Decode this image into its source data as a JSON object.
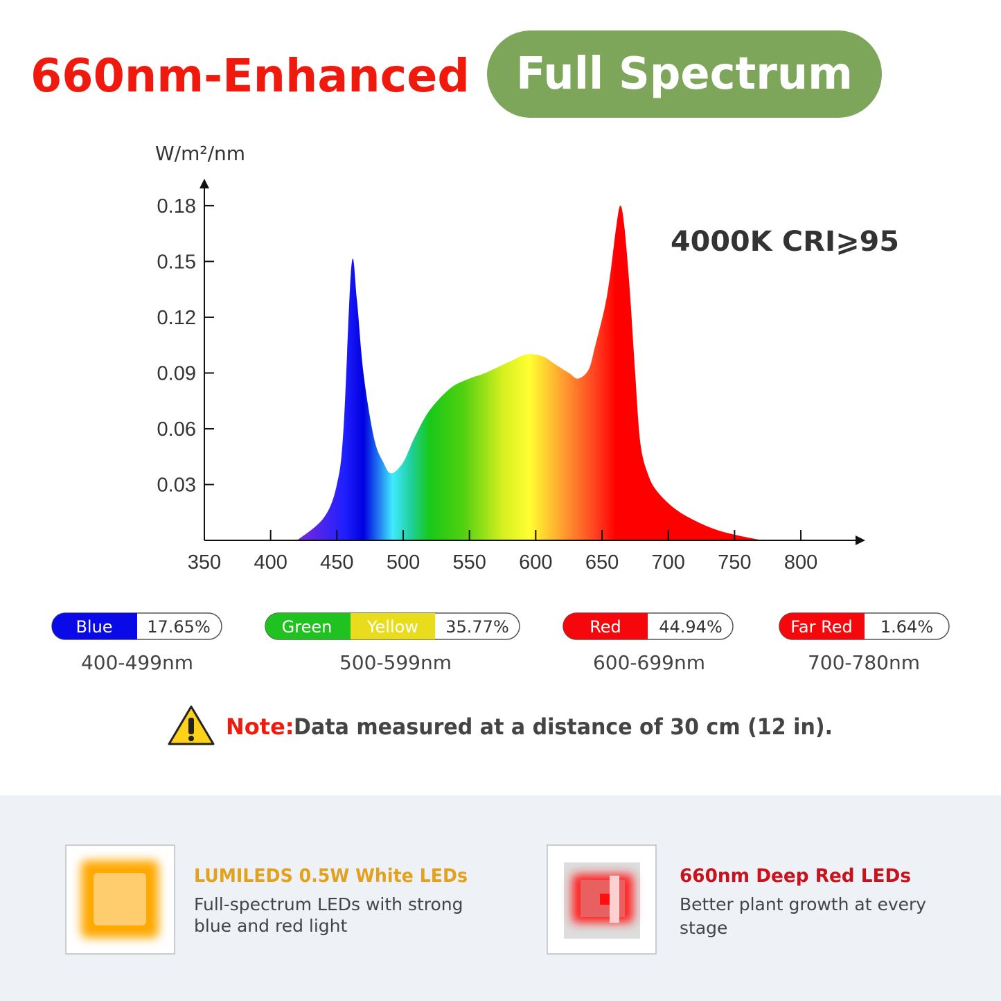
{
  "header": {
    "title": "660nm-Enhanced",
    "badge": "Full Spectrum"
  },
  "chart_data": {
    "type": "area",
    "y_label": "W/m²/nm",
    "annotation": "4000K CRI⩾95",
    "x": [
      420,
      440,
      450,
      455,
      461,
      465,
      470,
      478,
      485,
      491,
      500,
      509,
      520,
      536,
      550,
      562,
      580,
      593,
      605,
      614,
      625,
      632,
      640,
      645,
      652,
      656,
      661,
      664,
      667,
      671,
      675,
      679,
      685,
      692,
      705,
      719,
      735,
      750,
      771
    ],
    "y": [
      0,
      0.012,
      0.03,
      0.06,
      0.148,
      0.13,
      0.09,
      0.055,
      0.042,
      0.036,
      0.042,
      0.056,
      0.07,
      0.082,
      0.087,
      0.09,
      0.096,
      0.1,
      0.099,
      0.095,
      0.09,
      0.087,
      0.092,
      0.105,
      0.125,
      0.142,
      0.17,
      0.18,
      0.168,
      0.134,
      0.09,
      0.052,
      0.035,
      0.026,
      0.017,
      0.011,
      0.006,
      0.003,
      0
    ],
    "xlim": [
      350,
      846.5
    ],
    "ylim": [
      0,
      0.193
    ],
    "xticks": [
      350,
      400,
      450,
      500,
      550,
      600,
      650,
      700,
      750,
      800
    ],
    "yticks": [
      0.03,
      0.06,
      0.09,
      0.12,
      0.15,
      0.18
    ]
  },
  "bands": [
    {
      "names": [
        "Blue"
      ],
      "share": "17.65%",
      "range": "400-499nm"
    },
    {
      "names": [
        "Green",
        "Yellow"
      ],
      "share": "35.77%",
      "range": "500-599nm"
    },
    {
      "names": [
        "Red"
      ],
      "share": "44.94%",
      "range": "600-699nm"
    },
    {
      "names": [
        "Far Red"
      ],
      "share": "1.64%",
      "range": "700-780nm"
    }
  ],
  "note": {
    "label": "Note:",
    "text": "Data measured at a distance of 30 cm (12 in)."
  },
  "features": [
    {
      "title": "LUMILEDS 0.5W White LEDs",
      "lines": [
        "Full-spectrum LEDs with strong",
        "blue and red light"
      ]
    },
    {
      "title": "660nm Deep Red LEDs",
      "lines": [
        "Better plant growth at every",
        "stage"
      ]
    }
  ]
}
